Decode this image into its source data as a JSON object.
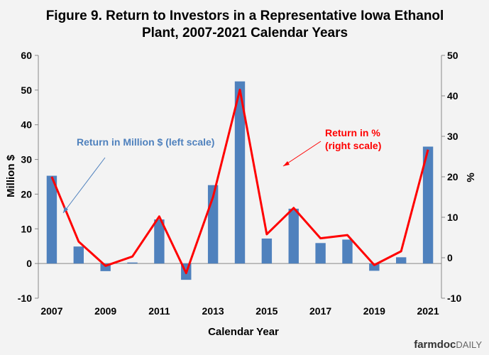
{
  "chart_data": {
    "type": "bar+line",
    "title_line1": "Figure 9. Return to Investors in a Representative Iowa Ethanol",
    "title_line2": "Plant, 2007-2021 Calendar Years",
    "xlabel": "Calendar Year",
    "ylabel_left": "Million $",
    "ylabel_right": "%",
    "years": [
      2007,
      2008,
      2009,
      2010,
      2011,
      2012,
      2013,
      2014,
      2015,
      2016,
      2017,
      2018,
      2019,
      2020,
      2021
    ],
    "x_tick_labels": [
      "2007",
      "2009",
      "2011",
      "2013",
      "2015",
      "2017",
      "2019",
      "2021"
    ],
    "left_axis": {
      "min": -10,
      "max": 60,
      "ticks": [
        "-10",
        "0",
        "10",
        "20",
        "30",
        "40",
        "50",
        "60"
      ]
    },
    "right_axis": {
      "min": -10,
      "max": 50,
      "ticks": [
        "-10",
        "0",
        "10",
        "20",
        "30",
        "40",
        "50"
      ]
    },
    "series": [
      {
        "name": "Return in Million $ (left scale)",
        "kind": "bar",
        "axis": "left",
        "color": "#4f81bd",
        "values": [
          25.3,
          4.9,
          -2.2,
          0.3,
          12.7,
          -4.7,
          22.6,
          52.5,
          7.2,
          15.8,
          5.9,
          6.9,
          -2.1,
          1.8,
          33.7
        ]
      },
      {
        "name": "Return in % (right scale)",
        "kind": "line",
        "axis": "right",
        "color": "#ff0000",
        "values": [
          20.0,
          4.0,
          -2.0,
          0.3,
          10.2,
          -3.8,
          15.0,
          41.5,
          5.8,
          12.3,
          4.8,
          5.6,
          -1.8,
          1.6,
          26.7
        ]
      }
    ],
    "annotations": {
      "blue_label": "Return in Million $ (left scale)",
      "red_label_line1": "Return in %",
      "red_label_line2": "(right scale)"
    }
  },
  "brand": {
    "main": "farmdoc",
    "suffix": "DAILY"
  },
  "colors": {
    "bar": "#4f81bd",
    "line": "#ff0000",
    "background": "#f3f3f3"
  }
}
